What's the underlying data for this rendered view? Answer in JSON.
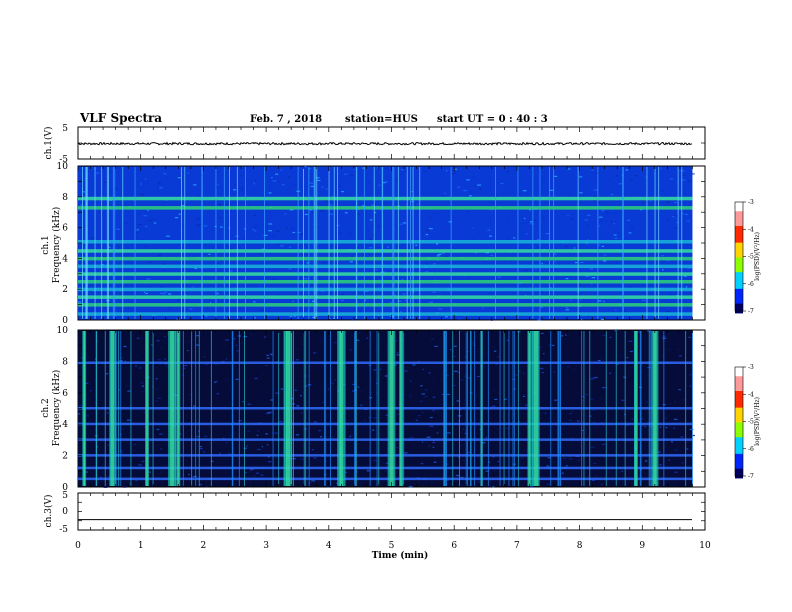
{
  "header": {
    "title": "VLF Spectra",
    "date": "Feb. 7 , 2018",
    "station": "station=HUS",
    "start_time": "start UT = 0 : 40 : 3"
  },
  "chart_data": [
    {
      "type": "line",
      "panel": "ch1-waveform",
      "ylabel": "ch.1(V)",
      "ylim": [
        -5,
        5
      ],
      "yticks": [
        "5",
        "-5"
      ],
      "series": [
        {
          "x": [
            0,
            9.8
          ],
          "y": [
            -0.2,
            -0.2
          ]
        }
      ]
    },
    {
      "type": "heatmap",
      "panel": "ch1-spectrogram",
      "ylabel": "ch.1\nFrequency (kHz)",
      "ylim": [
        0,
        10
      ],
      "yticks": [
        "0",
        "2",
        "4",
        "6",
        "8",
        "10"
      ],
      "data_xlim": [
        0,
        9.8
      ],
      "background": "blue (log PSD ~ -6)",
      "bands_khz": [
        0.4,
        1.0,
        1.5,
        2.0,
        2.5,
        3.0,
        3.5,
        4.0,
        4.5,
        5.1,
        7.3,
        7.9
      ],
      "colorbar": {
        "label": "log(PSD)(V²/Hz)",
        "range": [
          -7,
          -3
        ],
        "ticks": [
          "-3",
          "-4",
          "-5",
          "-6",
          "-7"
        ]
      }
    },
    {
      "type": "heatmap",
      "panel": "ch2-spectrogram",
      "ylabel": "ch.2\nFrequency (kHz)",
      "ylim": [
        0,
        10
      ],
      "yticks": [
        "0",
        "2",
        "4",
        "6",
        "8",
        "10"
      ],
      "data_xlim": [
        0,
        9.8
      ],
      "background": "dark navy (log PSD ~ -7)",
      "bands_khz": [
        0.5,
        1.2,
        2.0,
        3.0,
        4.0,
        5.0,
        7.9
      ],
      "bursts_min": [
        0.1,
        0.55,
        1.1,
        1.5,
        1.6,
        3.35,
        4.2,
        5.0,
        5.15,
        7.2,
        7.3,
        8.9,
        9.2
      ],
      "colorbar": {
        "label": "log(PSD)(V²/Hz)",
        "range": [
          -7,
          -3
        ],
        "ticks": [
          "-3",
          "-4",
          "-5",
          "-6",
          "-7"
        ]
      }
    },
    {
      "type": "line",
      "panel": "ch3-waveform",
      "ylabel": "ch.3(V)",
      "ylim": [
        -5,
        5
      ],
      "yticks": [
        "5",
        "0",
        "-5"
      ],
      "xlabel": "Time (min)",
      "xlim": [
        0,
        10
      ],
      "xticks": [
        "0",
        "1",
        "2",
        "3",
        "4",
        "5",
        "6",
        "7",
        "8",
        "9",
        "10"
      ],
      "series": [
        {
          "x": [
            0,
            9.8
          ],
          "y": [
            -2.2,
            -2.2
          ]
        }
      ]
    }
  ]
}
